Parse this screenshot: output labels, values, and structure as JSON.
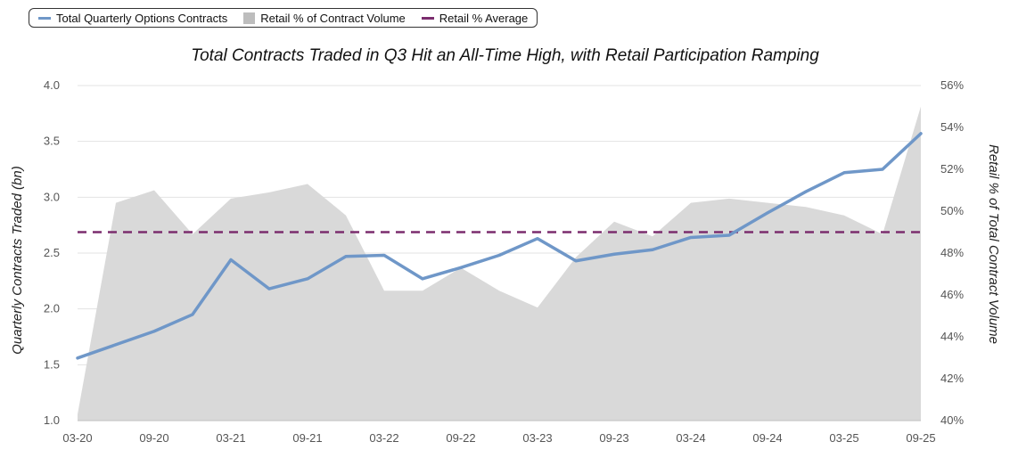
{
  "chart_data": {
    "type": "line",
    "title": "Total Contracts Traded in Q3 Hit an All-Time High, with Retail Participation Ramping",
    "ylabel": "Quarterly Contracts Traded (bn)",
    "y2label": "Retail % of Total Contract Volume",
    "ylim": [
      1.0,
      4.0
    ],
    "y2lim": [
      40,
      56
    ],
    "yticks": [
      "1.0",
      "1.5",
      "2.0",
      "2.5",
      "3.0",
      "3.5",
      "4.0"
    ],
    "y2ticks": [
      "40%",
      "42%",
      "44%",
      "46%",
      "48%",
      "50%",
      "52%",
      "54%",
      "56%"
    ],
    "x": [
      "03-20",
      "06-20",
      "09-20",
      "12-20",
      "03-21",
      "06-21",
      "09-21",
      "12-21",
      "03-22",
      "06-22",
      "09-22",
      "12-22",
      "03-23",
      "06-23",
      "09-23",
      "12-23",
      "03-24",
      "06-24",
      "09-24",
      "12-24",
      "03-25",
      "06-25",
      "09-25"
    ],
    "xtick_labels": [
      "03-20",
      "09-20",
      "03-21",
      "09-21",
      "03-22",
      "09-22",
      "03-23",
      "09-23",
      "03-24",
      "09-24",
      "03-25",
      "09-25"
    ],
    "legend_position": "top-left",
    "grid": true,
    "series": [
      {
        "name": "Total Quarterly Options Contracts",
        "kind": "line",
        "axis": "left",
        "color": "#6f97c8",
        "values": [
          1.56,
          1.68,
          1.8,
          1.95,
          2.44,
          2.18,
          2.27,
          2.47,
          2.48,
          2.27,
          2.37,
          2.48,
          2.63,
          2.43,
          2.49,
          2.53,
          2.64,
          2.66,
          2.86,
          3.05,
          3.22,
          3.25,
          3.57
        ]
      },
      {
        "name": "Retail % of Contract Volume",
        "kind": "area",
        "axis": "right",
        "color": "#d9d9d9",
        "values": [
          40.3,
          50.4,
          51.0,
          48.9,
          50.6,
          50.9,
          51.3,
          49.8,
          46.2,
          46.2,
          47.3,
          46.2,
          45.4,
          47.8,
          49.5,
          48.8,
          50.4,
          50.6,
          50.4,
          50.2,
          49.8,
          48.9,
          55.0
        ]
      },
      {
        "name": "Retail % Average",
        "kind": "dashed-line",
        "axis": "right",
        "color": "#7b2d6e",
        "values": [
          49.0,
          49.0,
          49.0,
          49.0,
          49.0,
          49.0,
          49.0,
          49.0,
          49.0,
          49.0,
          49.0,
          49.0,
          49.0,
          49.0,
          49.0,
          49.0,
          49.0,
          49.0,
          49.0,
          49.0,
          49.0,
          49.0,
          49.0
        ]
      }
    ]
  }
}
